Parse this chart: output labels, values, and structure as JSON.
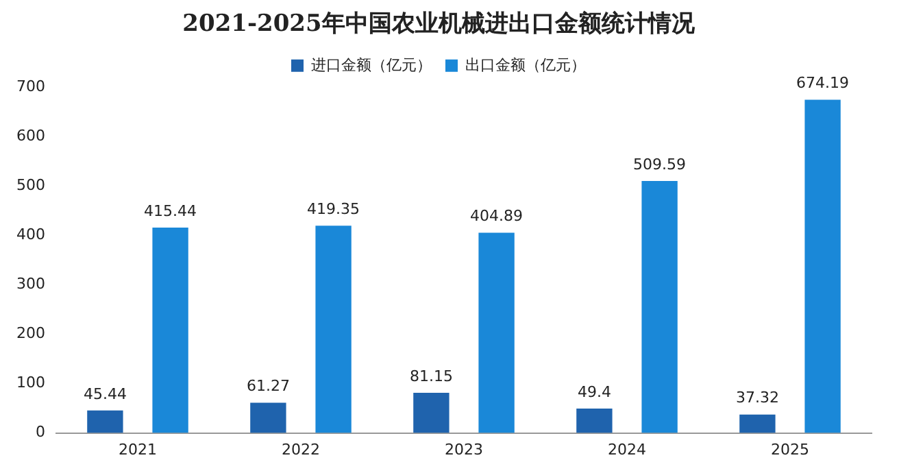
{
  "chart_data": {
    "type": "bar",
    "title": "2021-2025年中国农业机械进出口金额统计情况",
    "categories": [
      "2021",
      "2022",
      "2023",
      "2024",
      "2025"
    ],
    "series": [
      {
        "name": "进口金额（亿元）",
        "color": "#1f63ad",
        "values": [
          45.44,
          61.27,
          81.15,
          49.4,
          37.32
        ]
      },
      {
        "name": "出口金额（亿元）",
        "color": "#1a88d8",
        "values": [
          415.44,
          419.35,
          404.89,
          509.59,
          674.19
        ]
      }
    ],
    "ylim": [
      0,
      700
    ],
    "yticks": [
      0,
      100,
      200,
      300,
      400,
      500,
      600,
      700
    ],
    "grid": false,
    "legend": "top",
    "data_labels": true
  }
}
